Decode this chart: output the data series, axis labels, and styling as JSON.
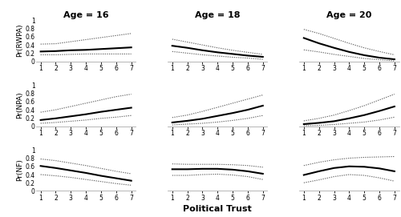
{
  "titles": [
    "Age = 16",
    "Age = 18",
    "Age = 20"
  ],
  "ylabels": [
    "Pr(RWPA)",
    "Pr(NPA)",
    "Pr(NF)"
  ],
  "xlabel": "Political Trust",
  "x": [
    1,
    2,
    3,
    4,
    5,
    6,
    7
  ],
  "background_color": "#ffffff",
  "curves": {
    "rwpa": {
      "age16": {
        "mean": [
          0.24,
          0.25,
          0.27,
          0.28,
          0.3,
          0.32,
          0.34
        ],
        "upper": [
          0.42,
          0.43,
          0.48,
          0.53,
          0.58,
          0.63,
          0.68
        ],
        "lower": [
          0.16,
          0.16,
          0.17,
          0.18,
          0.18,
          0.18,
          0.18
        ]
      },
      "age18": {
        "mean": [
          0.38,
          0.33,
          0.27,
          0.22,
          0.18,
          0.14,
          0.11
        ],
        "upper": [
          0.54,
          0.47,
          0.4,
          0.33,
          0.27,
          0.22,
          0.17
        ],
        "lower": [
          0.24,
          0.2,
          0.16,
          0.13,
          0.1,
          0.08,
          0.05
        ]
      },
      "age20": {
        "mean": [
          0.57,
          0.44,
          0.33,
          0.23,
          0.15,
          0.09,
          0.05
        ],
        "upper": [
          0.78,
          0.68,
          0.56,
          0.44,
          0.33,
          0.24,
          0.16
        ],
        "lower": [
          0.28,
          0.23,
          0.17,
          0.12,
          0.07,
          0.04,
          0.01
        ]
      }
    },
    "npa": {
      "age16": {
        "mean": [
          0.15,
          0.19,
          0.24,
          0.29,
          0.35,
          0.4,
          0.45
        ],
        "upper": [
          0.34,
          0.4,
          0.48,
          0.56,
          0.64,
          0.72,
          0.78
        ],
        "lower": [
          0.07,
          0.09,
          0.12,
          0.15,
          0.19,
          0.22,
          0.26
        ]
      },
      "age18": {
        "mean": [
          0.09,
          0.13,
          0.18,
          0.25,
          0.32,
          0.4,
          0.5
        ],
        "upper": [
          0.21,
          0.27,
          0.36,
          0.46,
          0.56,
          0.66,
          0.76
        ],
        "lower": [
          0.03,
          0.05,
          0.07,
          0.1,
          0.14,
          0.19,
          0.26
        ]
      },
      "age20": {
        "mean": [
          0.05,
          0.08,
          0.12,
          0.19,
          0.27,
          0.37,
          0.48
        ],
        "upper": [
          0.13,
          0.19,
          0.27,
          0.38,
          0.5,
          0.64,
          0.78
        ],
        "lower": [
          0.01,
          0.02,
          0.04,
          0.07,
          0.1,
          0.15,
          0.22
        ]
      }
    },
    "nf": {
      "age16": {
        "mean": [
          0.61,
          0.56,
          0.5,
          0.44,
          0.37,
          0.31,
          0.25
        ],
        "upper": [
          0.78,
          0.74,
          0.68,
          0.62,
          0.55,
          0.48,
          0.42
        ],
        "lower": [
          0.4,
          0.37,
          0.33,
          0.28,
          0.23,
          0.18,
          0.14
        ]
      },
      "age18": {
        "mean": [
          0.53,
          0.53,
          0.54,
          0.54,
          0.52,
          0.48,
          0.42
        ],
        "upper": [
          0.66,
          0.65,
          0.65,
          0.65,
          0.64,
          0.62,
          0.58
        ],
        "lower": [
          0.38,
          0.38,
          0.4,
          0.41,
          0.39,
          0.35,
          0.28
        ]
      },
      "age20": {
        "mean": [
          0.39,
          0.48,
          0.56,
          0.6,
          0.59,
          0.55,
          0.48
        ],
        "upper": [
          0.62,
          0.7,
          0.76,
          0.8,
          0.82,
          0.83,
          0.84
        ],
        "lower": [
          0.2,
          0.27,
          0.35,
          0.4,
          0.38,
          0.32,
          0.24
        ]
      }
    }
  },
  "line_color": "#000000",
  "ci_color": "#666666",
  "line_width": 1.5,
  "ci_linewidth": 0.8,
  "title_fontsize": 8,
  "label_fontsize": 6.5,
  "tick_fontsize": 5.5,
  "xlabel_fontsize": 8
}
